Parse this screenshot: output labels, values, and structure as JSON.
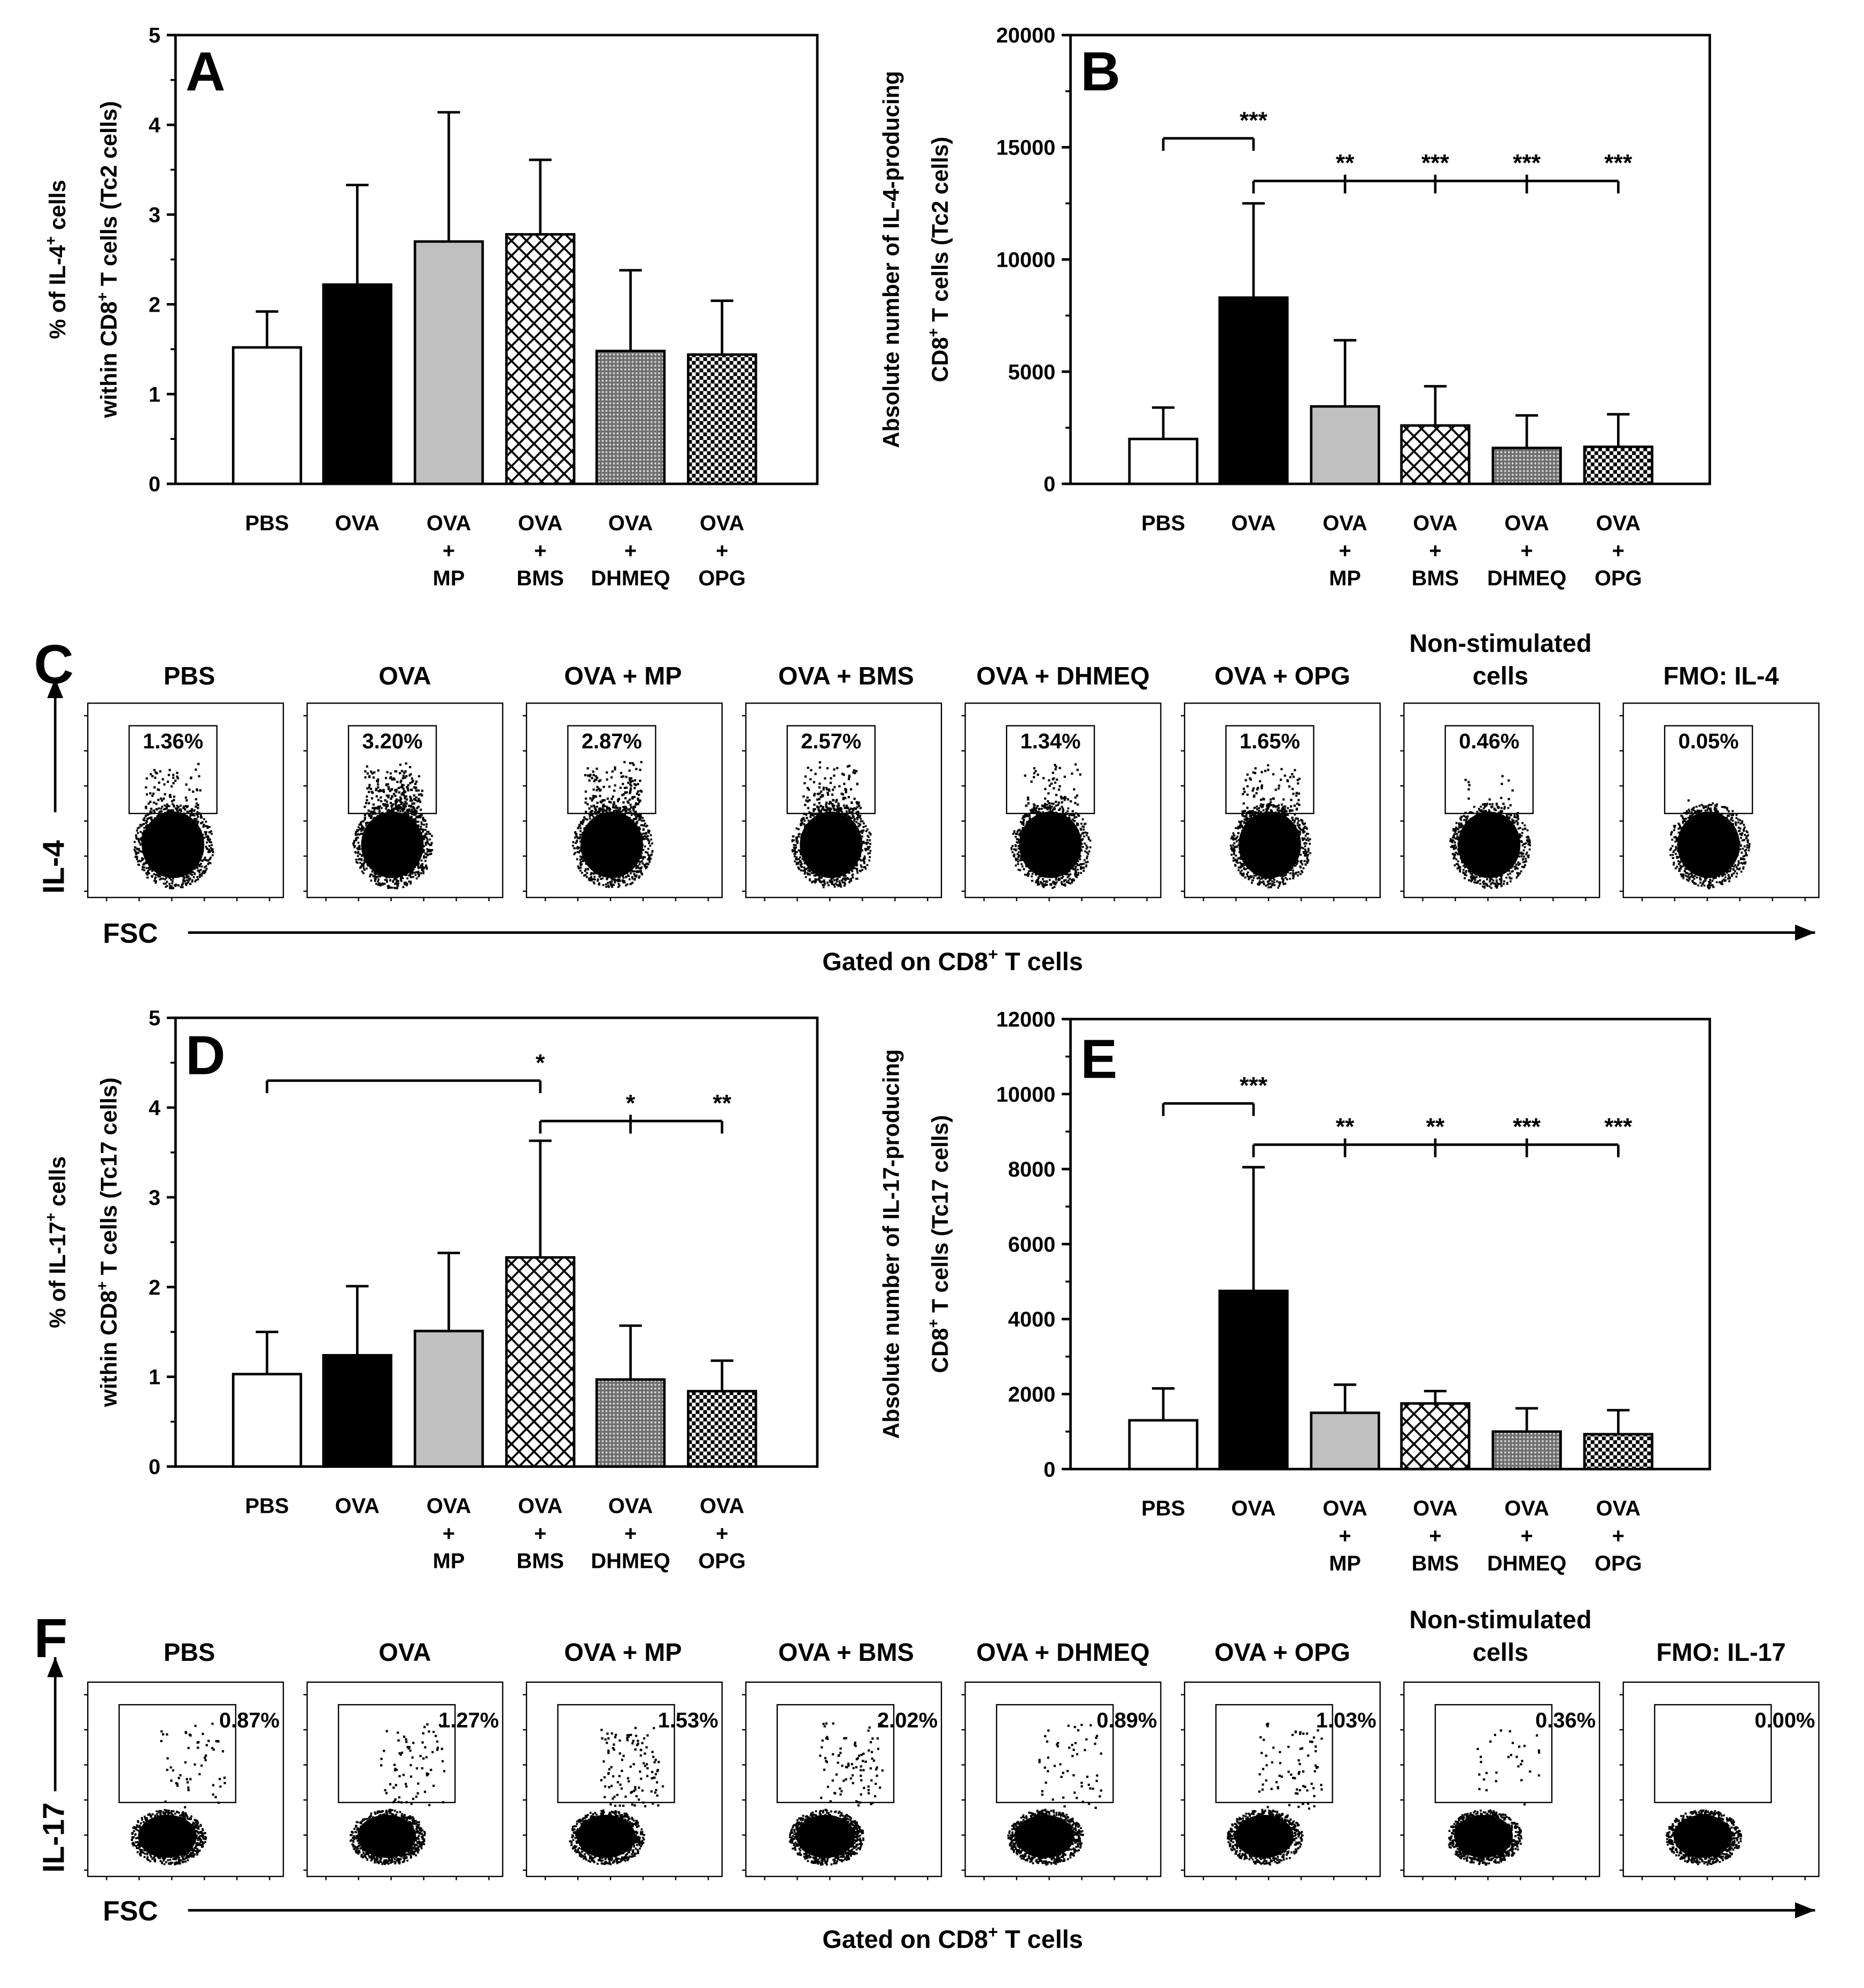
{
  "figure": {
    "tick_labels": {
      "A": [
        "0",
        "1",
        "2",
        "3",
        "4",
        "5"
      ],
      "B": [
        "0",
        "5000",
        "10000",
        "15000",
        "20000"
      ],
      "D": [
        "0",
        "1",
        "2",
        "3",
        "4",
        "5"
      ],
      "E": [
        "0",
        "2000",
        "4000",
        "6000",
        "8000",
        "10000",
        "12000"
      ]
    },
    "gated_label": "Gated on CD8",
    "gated_sup": "+",
    "gated_suffix": " T cells",
    "fsc_label": "FSC"
  },
  "chart_data": [
    {
      "panel": "A",
      "type": "bar",
      "categories": [
        "PBS",
        "OVA",
        "OVA + MP",
        "OVA + BMS",
        "OVA + DHMEQ",
        "OVA + OPG"
      ],
      "category_lines": [
        [
          "PBS"
        ],
        [
          "OVA"
        ],
        [
          "OVA",
          "+",
          "MP"
        ],
        [
          "OVA",
          "+",
          "BMS"
        ],
        [
          "OVA",
          "+",
          "DHMEQ"
        ],
        [
          "OVA",
          "+",
          "OPG"
        ]
      ],
      "values": [
        1.52,
        2.22,
        2.7,
        2.78,
        1.48,
        1.44
      ],
      "errors": [
        0.4,
        1.11,
        1.44,
        0.83,
        0.9,
        0.6
      ],
      "ylabel_line1": "% of IL-4",
      "ylabel_sup1": "+",
      "ylabel_line1_suffix": " cells",
      "ylabel_line2": "within CD8",
      "ylabel_sup2": "+",
      "ylabel_line2_suffix": " T cells (Tc2 cells)",
      "ylim": [
        0,
        5
      ],
      "significance": []
    },
    {
      "panel": "B",
      "type": "bar",
      "categories": [
        "PBS",
        "OVA",
        "OVA + MP",
        "OVA + BMS",
        "OVA + DHMEQ",
        "OVA + OPG"
      ],
      "category_lines": [
        [
          "PBS"
        ],
        [
          "OVA"
        ],
        [
          "OVA",
          "+",
          "MP"
        ],
        [
          "OVA",
          "+",
          "BMS"
        ],
        [
          "OVA",
          "+",
          "DHMEQ"
        ],
        [
          "OVA",
          "+",
          "OPG"
        ]
      ],
      "values": [
        2000,
        8300,
        3450,
        2600,
        1600,
        1650
      ],
      "errors": [
        1400,
        4200,
        2950,
        1750,
        1450,
        1450
      ],
      "ylabel_line1": "Absolute number of IL-4-producing",
      "ylabel_line2": "CD8",
      "ylabel_sup2": "+",
      "ylabel_line2_suffix": " T cells (Tc2 cells)",
      "ylim": [
        0,
        20000
      ],
      "significance": [
        {
          "from": 0,
          "to": [
            1
          ],
          "y": 15400,
          "label": "***"
        },
        {
          "from": 1,
          "to": [
            2,
            3,
            4,
            5
          ],
          "y": 13500,
          "labels": [
            "**",
            "***",
            "***",
            "***"
          ]
        }
      ]
    },
    {
      "panel": "D",
      "type": "bar",
      "categories": [
        "PBS",
        "OVA",
        "OVA + MP",
        "OVA + BMS",
        "OVA + DHMEQ",
        "OVA + OPG"
      ],
      "category_lines": [
        [
          "PBS"
        ],
        [
          "OVA"
        ],
        [
          "OVA",
          "+",
          "MP"
        ],
        [
          "OVA",
          "+",
          "BMS"
        ],
        [
          "OVA",
          "+",
          "DHMEQ"
        ],
        [
          "OVA",
          "+",
          "OPG"
        ]
      ],
      "values": [
        1.03,
        1.24,
        1.51,
        2.33,
        0.97,
        0.84
      ],
      "errors": [
        0.47,
        0.77,
        0.87,
        1.3,
        0.6,
        0.34
      ],
      "ylabel_line1": "% of IL-17",
      "ylabel_sup1": "+",
      "ylabel_line1_suffix": " cells",
      "ylabel_line2": "within CD8",
      "ylabel_sup2": "+",
      "ylabel_line2_suffix": " T cells (Tc17 cells)",
      "ylim": [
        0,
        5
      ],
      "significance": [
        {
          "from": 0,
          "to": [
            3
          ],
          "y": 4.3,
          "label": "*"
        },
        {
          "from": 3,
          "to": [
            4,
            5
          ],
          "y": 3.85,
          "labels": [
            "*",
            "**"
          ]
        }
      ]
    },
    {
      "panel": "E",
      "type": "bar",
      "categories": [
        "PBS",
        "OVA",
        "OVA + MP",
        "OVA + BMS",
        "OVA + DHMEQ",
        "OVA + OPG"
      ],
      "category_lines": [
        [
          "PBS"
        ],
        [
          "OVA"
        ],
        [
          "OVA",
          "+",
          "MP"
        ],
        [
          "OVA",
          "+",
          "BMS"
        ],
        [
          "OVA",
          "+",
          "DHMEQ"
        ],
        [
          "OVA",
          "+",
          "OPG"
        ]
      ],
      "values": [
        1300,
        4750,
        1500,
        1750,
        1000,
        930
      ],
      "errors": [
        850,
        3300,
        750,
        330,
        620,
        640
      ],
      "ylabel_line1": "Absolute number of IL-17-producing",
      "ylabel_line2": "CD8",
      "ylabel_sup2": "+",
      "ylabel_line2_suffix": " T cells (Tc17 cells)",
      "ylim": [
        0,
        12000
      ],
      "significance": [
        {
          "from": 0,
          "to": [
            1
          ],
          "y": 9750,
          "label": "***"
        },
        {
          "from": 1,
          "to": [
            2,
            3,
            4,
            5
          ],
          "y": 8650,
          "labels": [
            "**",
            "**",
            "***",
            "***"
          ]
        }
      ]
    },
    {
      "panel": "C",
      "type": "flow-scatter",
      "marker": "IL-4",
      "xlabel": "FSC",
      "samples": [
        {
          "title": [
            "PBS"
          ],
          "gate": "1.36%"
        },
        {
          "title": [
            "OVA"
          ],
          "gate": "3.20%"
        },
        {
          "title": [
            "OVA + MP"
          ],
          "gate": "2.87%"
        },
        {
          "title": [
            "OVA + BMS"
          ],
          "gate": "2.57%"
        },
        {
          "title": [
            "OVA + DHMEQ"
          ],
          "gate": "1.34%"
        },
        {
          "title": [
            "OVA + OPG"
          ],
          "gate": "1.65%"
        },
        {
          "title": [
            "Non-stimulated",
            "cells"
          ],
          "gate": "0.46%"
        },
        {
          "title": [
            "FMO: IL-4"
          ],
          "gate": "0.05%"
        }
      ]
    },
    {
      "panel": "F",
      "type": "flow-scatter",
      "marker": "IL-17",
      "xlabel": "FSC",
      "samples": [
        {
          "title": [
            "PBS"
          ],
          "gate": "0.87%"
        },
        {
          "title": [
            "OVA"
          ],
          "gate": "1.27%"
        },
        {
          "title": [
            "OVA + MP"
          ],
          "gate": "1.53%"
        },
        {
          "title": [
            "OVA + BMS"
          ],
          "gate": "2.02%"
        },
        {
          "title": [
            "OVA + DHMEQ"
          ],
          "gate": "0.89%"
        },
        {
          "title": [
            "OVA + OPG"
          ],
          "gate": "1.03%"
        },
        {
          "title": [
            "Non-stimulated",
            "cells"
          ],
          "gate": "0.36%"
        },
        {
          "title": [
            "FMO: IL-17"
          ],
          "gate": "0.00%"
        }
      ]
    }
  ]
}
